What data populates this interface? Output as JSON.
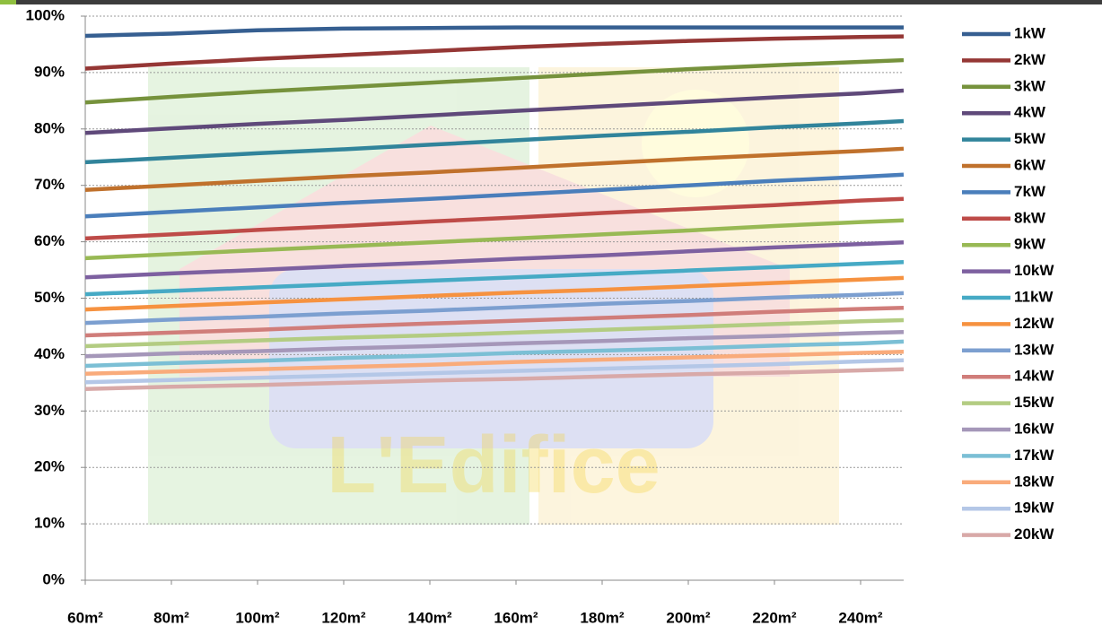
{
  "chart_data": {
    "type": "line",
    "x": [
      60,
      80,
      100,
      120,
      140,
      160,
      180,
      200,
      220,
      240,
      250
    ],
    "xlim": [
      60,
      250
    ],
    "xticks": [
      {
        "value": 60,
        "label": "60m²"
      },
      {
        "value": 80,
        "label": "80m²"
      },
      {
        "value": 100,
        "label": "100m²"
      },
      {
        "value": 120,
        "label": "120m²"
      },
      {
        "value": 140,
        "label": "140m²"
      },
      {
        "value": 160,
        "label": "160m²"
      },
      {
        "value": 180,
        "label": "180m²"
      },
      {
        "value": 200,
        "label": "200m²"
      },
      {
        "value": 220,
        "label": "220m²"
      },
      {
        "value": 240,
        "label": "240m²"
      }
    ],
    "ylim": [
      0,
      100
    ],
    "yticks": [
      {
        "value": 0,
        "label": "0%"
      },
      {
        "value": 10,
        "label": "10%"
      },
      {
        "value": 20,
        "label": "20%"
      },
      {
        "value": 30,
        "label": "30%"
      },
      {
        "value": 40,
        "label": "40%"
      },
      {
        "value": 50,
        "label": "50%"
      },
      {
        "value": 60,
        "label": "60%"
      },
      {
        "value": 70,
        "label": "70%"
      },
      {
        "value": 80,
        "label": "80%"
      },
      {
        "value": 90,
        "label": "90%"
      },
      {
        "value": 100,
        "label": "100%"
      }
    ],
    "grid": true,
    "legend": "right",
    "watermark": "L'Edifice",
    "series": [
      {
        "name": "1kW",
        "color": "#365f91",
        "values": [
          96.5,
          96.9,
          97.5,
          97.8,
          97.9,
          98.0,
          98.0,
          98.0,
          98.0,
          98.0,
          98.0
        ]
      },
      {
        "name": "2kW",
        "color": "#953735",
        "values": [
          90.7,
          91.6,
          92.4,
          93.1,
          93.8,
          94.5,
          95.1,
          95.6,
          96.0,
          96.3,
          96.4
        ]
      },
      {
        "name": "3kW",
        "color": "#76923c",
        "values": [
          84.7,
          85.7,
          86.6,
          87.4,
          88.2,
          89.0,
          89.8,
          90.6,
          91.3,
          91.9,
          92.2
        ]
      },
      {
        "name": "4kW",
        "color": "#5f497a",
        "values": [
          79.3,
          80.1,
          80.9,
          81.6,
          82.4,
          83.2,
          84.0,
          84.8,
          85.6,
          86.3,
          86.8
        ]
      },
      {
        "name": "5kW",
        "color": "#31849b",
        "values": [
          74.1,
          74.9,
          75.7,
          76.4,
          77.2,
          78.0,
          78.8,
          79.5,
          80.3,
          81.0,
          81.4
        ]
      },
      {
        "name": "6kW",
        "color": "#c0712c",
        "values": [
          69.2,
          70.0,
          70.8,
          71.6,
          72.3,
          73.1,
          73.9,
          74.7,
          75.4,
          76.1,
          76.5
        ]
      },
      {
        "name": "7kW",
        "color": "#4a7ebb",
        "values": [
          64.5,
          65.3,
          66.1,
          66.9,
          67.6,
          68.4,
          69.2,
          70.0,
          70.8,
          71.5,
          71.9
        ]
      },
      {
        "name": "8kW",
        "color": "#be4b48",
        "values": [
          60.6,
          61.3,
          62.1,
          62.8,
          63.6,
          64.3,
          65.1,
          65.8,
          66.5,
          67.3,
          67.6
        ]
      },
      {
        "name": "9kW",
        "color": "#98b954",
        "values": [
          57.1,
          57.8,
          58.5,
          59.2,
          59.9,
          60.6,
          61.3,
          62.0,
          62.8,
          63.5,
          63.8
        ]
      },
      {
        "name": "10kW",
        "color": "#7d60a0",
        "values": [
          53.7,
          54.4,
          55.0,
          55.7,
          56.3,
          57.0,
          57.6,
          58.3,
          59.0,
          59.6,
          59.9
        ]
      },
      {
        "name": "11kW",
        "color": "#46aac5",
        "values": [
          50.7,
          51.3,
          51.9,
          52.5,
          53.1,
          53.7,
          54.3,
          54.9,
          55.5,
          56.1,
          56.4
        ]
      },
      {
        "name": "12kW",
        "color": "#f69240",
        "values": [
          48.0,
          48.6,
          49.2,
          49.8,
          50.4,
          51.0,
          51.5,
          52.1,
          52.7,
          53.3,
          53.6
        ]
      },
      {
        "name": "13kW",
        "color": "#7c9fd0",
        "values": [
          45.6,
          46.2,
          46.7,
          47.3,
          47.8,
          48.4,
          49.0,
          49.5,
          50.1,
          50.6,
          50.9
        ]
      },
      {
        "name": "14kW",
        "color": "#d07d7a",
        "values": [
          43.4,
          43.9,
          44.4,
          45.0,
          45.5,
          46.0,
          46.5,
          47.0,
          47.6,
          48.1,
          48.3
        ]
      },
      {
        "name": "15kW",
        "color": "#b3cc82",
        "values": [
          41.5,
          42.0,
          42.5,
          43.0,
          43.4,
          43.9,
          44.4,
          44.9,
          45.4,
          45.9,
          46.1
        ]
      },
      {
        "name": "16kW",
        "color": "#a597b9",
        "values": [
          39.7,
          40.2,
          40.6,
          41.1,
          41.5,
          42.0,
          42.4,
          42.9,
          43.3,
          43.8,
          44.0
        ]
      },
      {
        "name": "17kW",
        "color": "#7bbfd5",
        "values": [
          38.0,
          38.5,
          38.9,
          39.4,
          39.8,
          40.3,
          40.7,
          41.1,
          41.6,
          42.0,
          42.3
        ]
      },
      {
        "name": "18kW",
        "color": "#f9ab7b",
        "values": [
          36.6,
          37.0,
          37.4,
          37.8,
          38.2,
          38.7,
          39.1,
          39.5,
          39.9,
          40.3,
          40.5
        ]
      },
      {
        "name": "19kW",
        "color": "#b4c7e7",
        "values": [
          35.1,
          35.5,
          35.9,
          36.3,
          36.7,
          37.1,
          37.5,
          37.9,
          38.3,
          38.8,
          39.0
        ]
      },
      {
        "name": "20kW",
        "color": "#d8a9a8",
        "values": [
          33.9,
          34.3,
          34.6,
          35.0,
          35.4,
          35.7,
          36.1,
          36.5,
          36.8,
          37.2,
          37.4
        ]
      }
    ]
  }
}
